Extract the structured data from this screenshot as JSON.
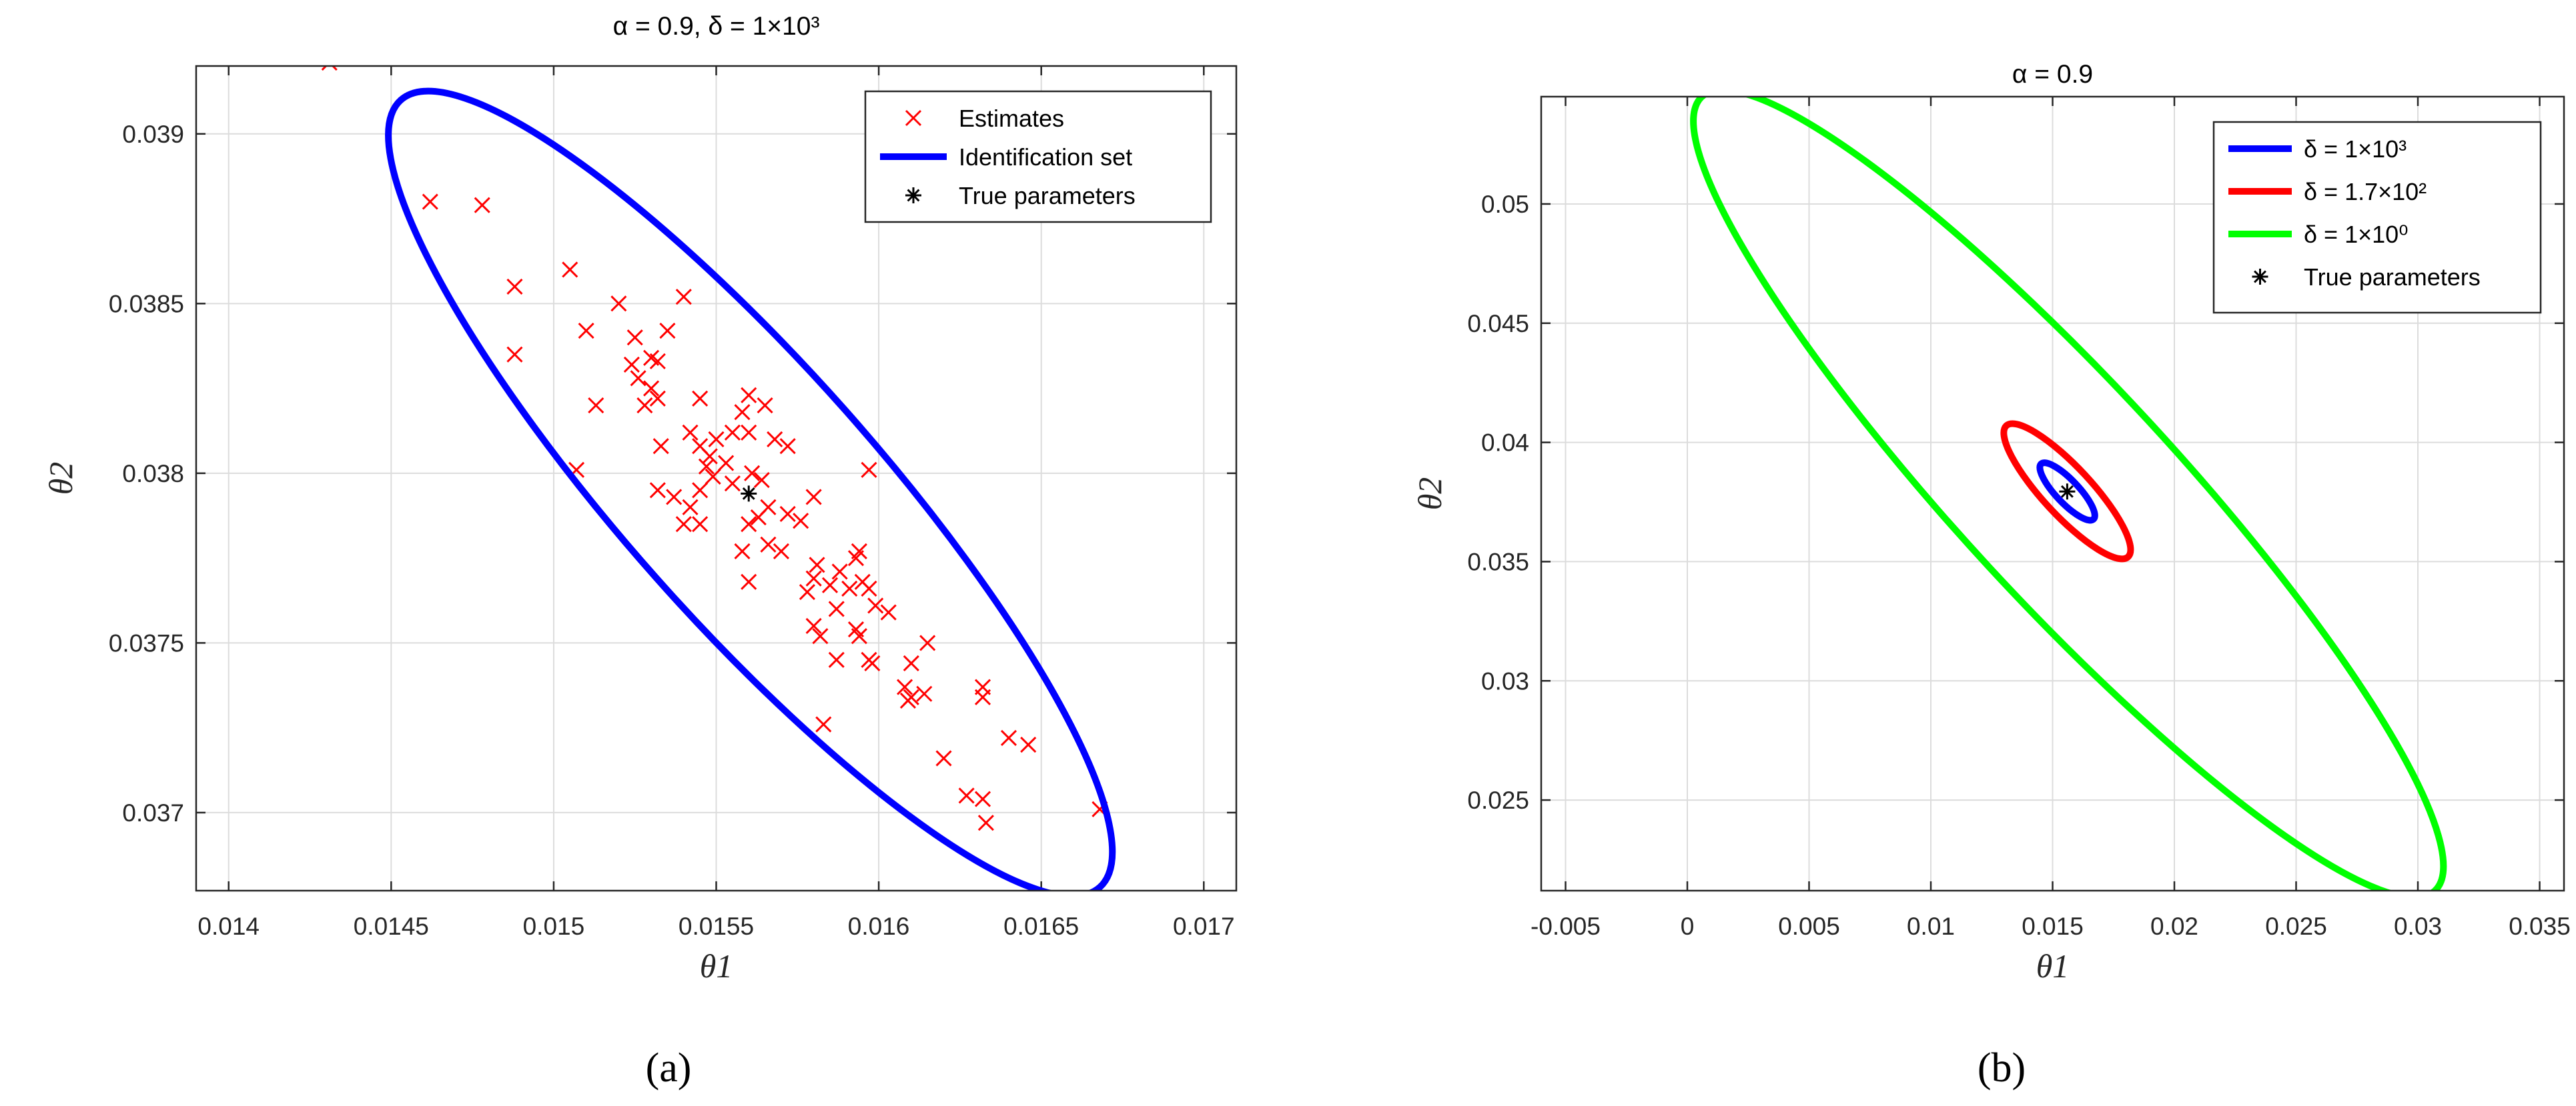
{
  "chart_data": [
    {
      "panel": "(a)",
      "type": "scatter",
      "title": "α = 0.9, δ = 1×10³",
      "xlabel": "θ1",
      "ylabel": "θ2",
      "xlim": [
        0.0139,
        0.0171
      ],
      "ylim": [
        0.03677,
        0.0392
      ],
      "xticks": [
        0.014,
        0.0145,
        0.015,
        0.0155,
        0.016,
        0.0165,
        0.017
      ],
      "xtick_labels": [
        "0.014",
        "0.0145",
        "0.015",
        "0.0155",
        "0.016",
        "0.0165",
        "0.017"
      ],
      "yticks": [
        0.037,
        0.0375,
        0.038,
        0.0385,
        0.039
      ],
      "ytick_labels": [
        "0.037",
        "0.0375",
        "0.038",
        "0.0385",
        "0.039"
      ],
      "grid": true,
      "legend_position": "top-right",
      "series": [
        {
          "name": "Estimates",
          "marker": "x",
          "color": "#ff0000",
          "points": [
            [
              0.01431,
              0.03921
            ],
            [
              0.01462,
              0.0388
            ],
            [
              0.01478,
              0.03879
            ],
            [
              0.01505,
              0.0386
            ],
            [
              0.01488,
              0.03855
            ],
            [
              0.0154,
              0.03852
            ],
            [
              0.0152,
              0.0385
            ],
            [
              0.0151,
              0.03842
            ],
            [
              0.01525,
              0.0384
            ],
            [
              0.01535,
              0.03842
            ],
            [
              0.0153,
              0.03834
            ],
            [
              0.01524,
              0.03832
            ],
            [
              0.01488,
              0.03835
            ],
            [
              0.01532,
              0.03833
            ],
            [
              0.01526,
              0.03828
            ],
            [
              0.0153,
              0.03825
            ],
            [
              0.01545,
              0.03822
            ],
            [
              0.01528,
              0.0382
            ],
            [
              0.01513,
              0.0382
            ],
            [
              0.01532,
              0.03822
            ],
            [
              0.0156,
              0.03823
            ],
            [
              0.01565,
              0.0382
            ],
            [
              0.01558,
              0.03818
            ],
            [
              0.01555,
              0.03812
            ],
            [
              0.0156,
              0.03812
            ],
            [
              0.01568,
              0.0381
            ],
            [
              0.01572,
              0.03808
            ],
            [
              0.0155,
              0.0381
            ],
            [
              0.01545,
              0.03808
            ],
            [
              0.01533,
              0.03808
            ],
            [
              0.01542,
              0.03812
            ],
            [
              0.01548,
              0.03805
            ],
            [
              0.01553,
              0.03803
            ],
            [
              0.01547,
              0.03802
            ],
            [
              0.01549,
              0.03799
            ],
            [
              0.01561,
              0.038
            ],
            [
              0.01564,
              0.03798
            ],
            [
              0.01507,
              0.03801
            ],
            [
              0.01597,
              0.03801
            ],
            [
              0.01532,
              0.03795
            ],
            [
              0.01545,
              0.03795
            ],
            [
              0.01555,
              0.03797
            ],
            [
              0.01542,
              0.0379
            ],
            [
              0.01537,
              0.03793
            ],
            [
              0.01566,
              0.0379
            ],
            [
              0.0158,
              0.03793
            ],
            [
              0.01572,
              0.03788
            ],
            [
              0.01563,
              0.03787
            ],
            [
              0.0156,
              0.03785
            ],
            [
              0.01576,
              0.03786
            ],
            [
              0.01545,
              0.03785
            ],
            [
              0.0154,
              0.03785
            ],
            [
              0.01558,
              0.03777
            ],
            [
              0.01566,
              0.03779
            ],
            [
              0.0157,
              0.03777
            ],
            [
              0.01594,
              0.03777
            ],
            [
              0.01593,
              0.03775
            ],
            [
              0.01581,
              0.03773
            ],
            [
              0.01588,
              0.03771
            ],
            [
              0.0158,
              0.03769
            ],
            [
              0.01585,
              0.03767
            ],
            [
              0.01595,
              0.03768
            ],
            [
              0.01597,
              0.03766
            ],
            [
              0.01591,
              0.03766
            ],
            [
              0.0156,
              0.03768
            ],
            [
              0.01578,
              0.03765
            ],
            [
              0.01599,
              0.03761
            ],
            [
              0.01603,
              0.03759
            ],
            [
              0.01587,
              0.0376
            ],
            [
              0.0158,
              0.03755
            ],
            [
              0.01593,
              0.03754
            ],
            [
              0.01594,
              0.03752
            ],
            [
              0.01582,
              0.03752
            ],
            [
              0.01615,
              0.0375
            ],
            [
              0.01597,
              0.03745
            ],
            [
              0.01587,
              0.03745
            ],
            [
              0.01598,
              0.03744
            ],
            [
              0.0161,
              0.03744
            ],
            [
              0.01608,
              0.03737
            ],
            [
              0.0161,
              0.03734
            ],
            [
              0.01609,
              0.03733
            ],
            [
              0.01614,
              0.03735
            ],
            [
              0.01632,
              0.03737
            ],
            [
              0.01632,
              0.03734
            ],
            [
              0.01583,
              0.03726
            ],
            [
              0.0164,
              0.03722
            ],
            [
              0.01646,
              0.0372
            ],
            [
              0.0162,
              0.03716
            ],
            [
              0.01627,
              0.03705
            ],
            [
              0.01632,
              0.03704
            ],
            [
              0.01633,
              0.03697
            ],
            [
              0.01668,
              0.03701
            ]
          ]
        },
        {
          "name": "Identification set",
          "type": "ellipse",
          "color": "#0000ff",
          "center": [
            0.0156,
            0.03794
          ],
          "extreme_points": [
            [
              0.01453,
              0.0391
            ],
            [
              0.01668,
              0.03678
            ]
          ]
        },
        {
          "name": "True parameters",
          "marker": "*",
          "color": "#000000",
          "points": [
            [
              0.0156,
              0.03794
            ]
          ]
        }
      ]
    },
    {
      "panel": "(b)",
      "type": "line",
      "title": "α = 0.9",
      "xlabel": "θ1",
      "ylabel": "θ2",
      "xlim": [
        -0.006,
        0.036
      ],
      "ylim": [
        0.0212,
        0.0545
      ],
      "xticks": [
        -0.005,
        0,
        0.005,
        0.01,
        0.015,
        0.02,
        0.025,
        0.03,
        0.035
      ],
      "xtick_labels": [
        "-0.005",
        "0",
        "0.005",
        "0.01",
        "0.015",
        "0.02",
        "0.025",
        "0.03",
        "0.035"
      ],
      "yticks": [
        0.025,
        0.03,
        0.035,
        0.04,
        0.045,
        0.05
      ],
      "ytick_labels": [
        "0.025",
        "0.03",
        "0.035",
        "0.04",
        "0.045",
        "0.05"
      ],
      "grid": true,
      "legend_position": "top-right",
      "series": [
        {
          "name": "δ = 1×10³",
          "type": "ellipse",
          "color": "#0000ff",
          "center": [
            0.0156,
            0.03794
          ],
          "extreme_points": [
            [
              0.01453,
              0.0391
            ],
            [
              0.01668,
              0.03678
            ]
          ]
        },
        {
          "name": "δ = 1.7×10²",
          "type": "ellipse",
          "color": "#ff0000",
          "center": [
            0.0156,
            0.03794
          ],
          "extreme_points": [
            [
              0.0131,
              0.0407
            ],
            [
              0.0181,
              0.0352
            ]
          ]
        },
        {
          "name": "δ = 1×10⁰",
          "type": "ellipse",
          "color": "#00ff00",
          "center": [
            0.0156,
            0.03794
          ],
          "extreme_points": [
            [
              0.0006,
              0.0545
            ],
            [
              0.0307,
              0.0212
            ]
          ]
        },
        {
          "name": "True parameters",
          "marker": "*",
          "color": "#000000",
          "points": [
            [
              0.0156,
              0.03794
            ]
          ]
        }
      ]
    }
  ],
  "panel_labels": [
    "(a)",
    "(b)"
  ]
}
